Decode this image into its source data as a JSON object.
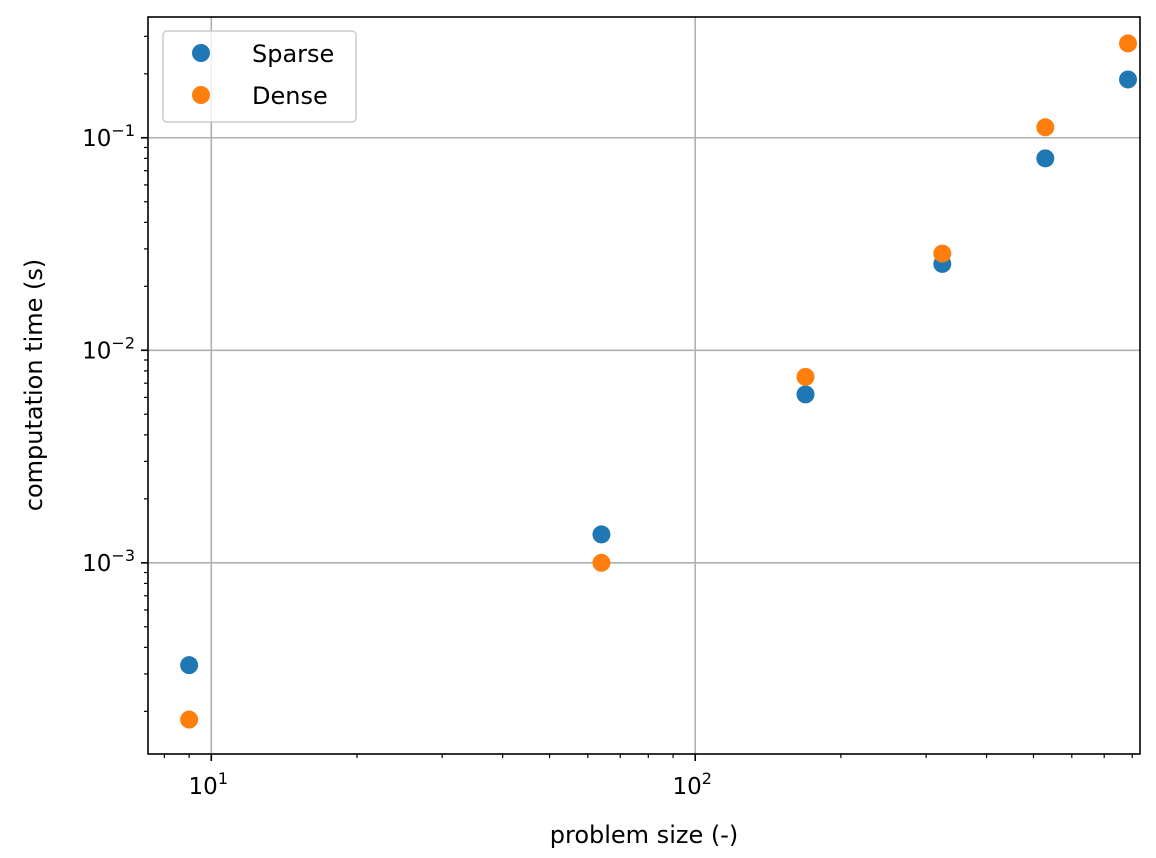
{
  "chart_data": {
    "type": "scatter",
    "xlabel": "problem size (-)",
    "ylabel": "computation time (s)",
    "xscale": "log",
    "yscale": "log",
    "xlim": [
      7.4,
      830
    ],
    "ylim": [
      0.000126,
      0.37
    ],
    "grid": true,
    "legend_position": "upper left",
    "x": [
      9,
      64,
      169,
      324,
      529,
      784
    ],
    "series": [
      {
        "name": "Sparse",
        "color": "#1f77b4",
        "values": [
          0.00033,
          0.00136,
          0.0062,
          0.0255,
          0.08,
          0.188
        ]
      },
      {
        "name": "Dense",
        "color": "#ff7f0e",
        "values": [
          0.000183,
          0.001,
          0.0075,
          0.0285,
          0.112,
          0.278
        ]
      }
    ],
    "x_ticks": [
      {
        "value": 10,
        "base": "10",
        "exp": "1"
      },
      {
        "value": 100,
        "base": "10",
        "exp": "2"
      }
    ],
    "y_ticks": [
      {
        "value": 0.001,
        "base": "10",
        "exp": "−3"
      },
      {
        "value": 0.01,
        "base": "10",
        "exp": "−2"
      },
      {
        "value": 0.1,
        "base": "10",
        "exp": "−1"
      }
    ]
  }
}
